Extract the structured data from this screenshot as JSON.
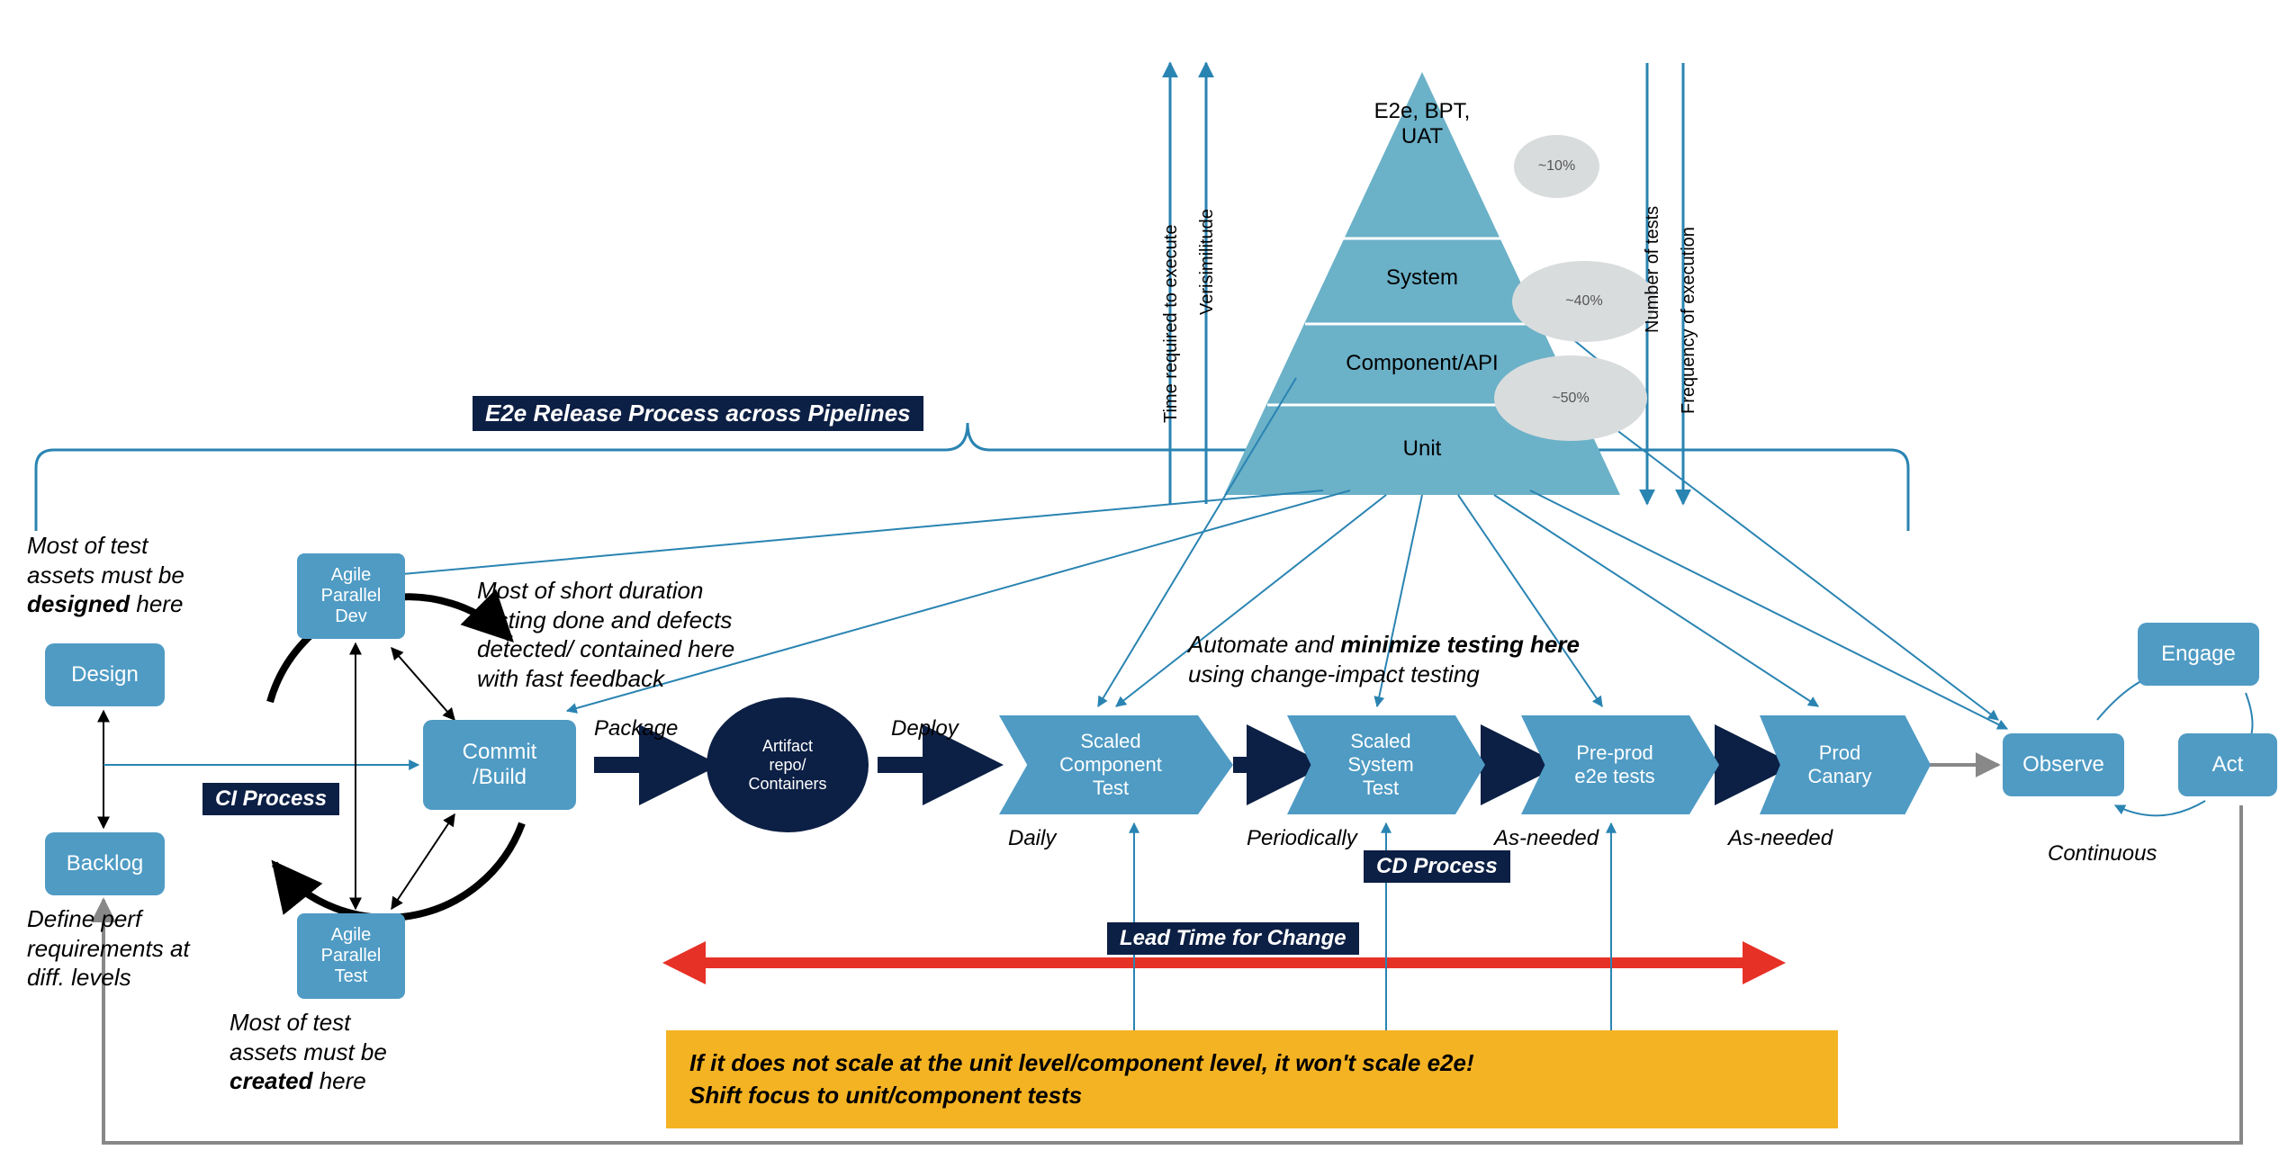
{
  "palette": {
    "box_fill": "#4f9bc4",
    "box_text": "#ffffff",
    "dark_navy": "#0c1f44",
    "yellow": "#f4b323",
    "black": "#000000",
    "gray_line": "#888888",
    "teal_line": "#2a84b2",
    "pyramid_fill": "#6bb1c8",
    "oval_gray": "#d9dcdd",
    "red_arrow": "#e63127"
  },
  "typography": {
    "body_font": "Arial",
    "note_size_pt": 20,
    "box_size_pt": 18
  },
  "banners": {
    "e2e_release": "E2e Release Process across Pipelines",
    "ci_process": "CI Process",
    "cd_process": "CD Process",
    "lead_time": "Lead Time for Change"
  },
  "boxes": {
    "design": "Design",
    "backlog": "Backlog",
    "agile_dev": "Agile\nParallel\nDev",
    "agile_test": "Agile\nParallel\nTest",
    "commit_build": "Commit\n/Build",
    "artifact": "Artifact\nrepo/\nContainers",
    "scaled_component": "Scaled\nComponent\nTest",
    "scaled_system": "Scaled\nSystem\nTest",
    "preprod": "Pre-prod\ne2e tests",
    "prod_canary": "Prod\nCanary",
    "observe": "Observe",
    "engage": "Engage",
    "act": "Act"
  },
  "labels": {
    "package": "Package",
    "deploy": "Deploy"
  },
  "cadence": {
    "daily": "Daily",
    "periodically": "Periodically",
    "as_needed_1": "As-needed",
    "as_needed_2": "As-needed",
    "continuous": "Continuous"
  },
  "notes": {
    "designed_here": "Most of test\nassets must be\n<b>designed</b> here",
    "created_here": "Most of test\nassets must be\n<b>created</b> here",
    "perf_req": "Define perf\nrequirements at\ndiff. levels",
    "short_duration": "Most of short duration\ntesting done and defects\ndetected/ contained here\nwith fast feedback",
    "automate": "Automate and <b>minimize testing here</b>\nusing change-impact testing"
  },
  "callout": {
    "line1": "If it does not scale at the unit level/component level, it won't scale e2e!",
    "line2": "Shift focus to unit/component tests"
  },
  "pyramid": {
    "layers": [
      "E2e, BPT,\nUAT",
      "System",
      "Component/API",
      "Unit"
    ],
    "percents": [
      "~10%",
      "~40%",
      "~50%"
    ],
    "left_axis_top": "Time required to execute",
    "left_axis_bottom": "Verisimilitude",
    "right_axis_top": "Number of tests",
    "right_axis_bottom": "Frequency of execution"
  }
}
